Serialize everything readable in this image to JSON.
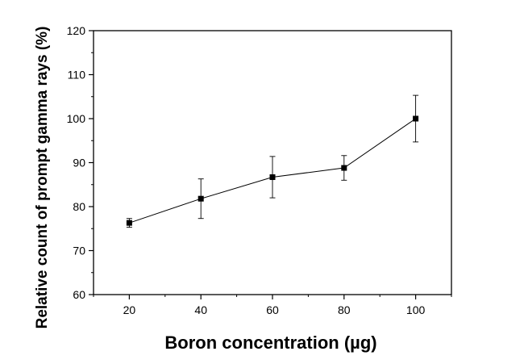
{
  "chart_data": {
    "type": "line",
    "title": "",
    "xlabel": "Boron concentration (µg)",
    "ylabel": "Relative count of prompt gamma rays (%)",
    "xlim": [
      10,
      110
    ],
    "ylim": [
      60,
      120
    ],
    "xticks": [
      20,
      40,
      60,
      80,
      100
    ],
    "xtick_labels": [
      "20",
      "40",
      "60",
      "80",
      "100"
    ],
    "yticks": [
      60,
      70,
      80,
      90,
      100,
      110,
      120
    ],
    "ytick_labels": [
      "60",
      "70",
      "80",
      "90",
      "100",
      "110",
      "120"
    ],
    "grid": false,
    "legend": "none",
    "series": [
      {
        "x": [
          20,
          40,
          60,
          80,
          100
        ],
        "y": [
          76.3,
          81.8,
          86.7,
          88.8,
          100.0
        ],
        "error": [
          1.0,
          4.5,
          4.7,
          2.8,
          5.3
        ],
        "marker": "square",
        "color": "#000000"
      }
    ]
  }
}
